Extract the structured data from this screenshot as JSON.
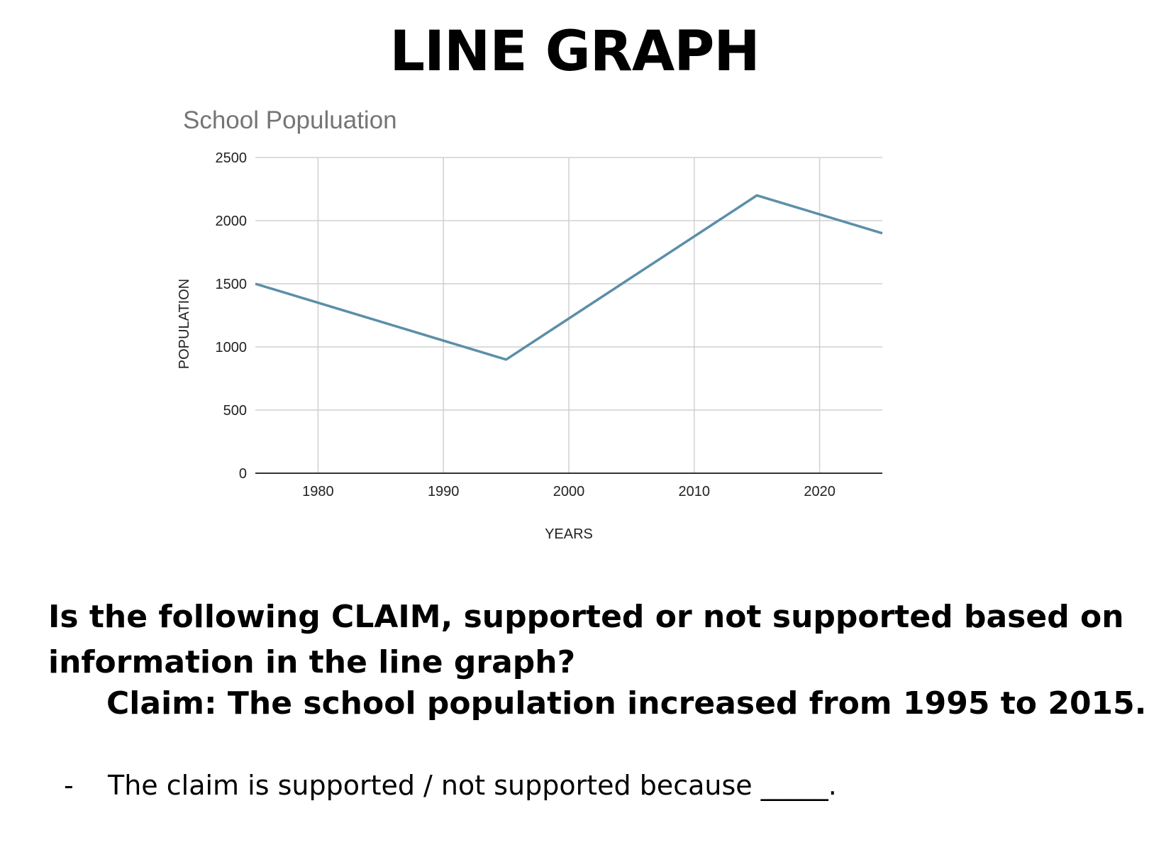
{
  "page": {
    "title": "LINE GRAPH",
    "question": "Is the following CLAIM, supported or not supported based on information in the line graph?",
    "claim": "Claim:  The school population increased from 1995 to 2015.",
    "bullet_marker": "-",
    "bullet_text": "The claim is supported / not supported because _____."
  },
  "chart_data": {
    "type": "line",
    "title": "School Populuation",
    "xlabel": "YEARS",
    "ylabel": "POPULATION",
    "xlim": [
      1975,
      2025
    ],
    "ylim": [
      0,
      2500
    ],
    "xticks": [
      1980,
      1990,
      2000,
      2010,
      2020
    ],
    "yticks": [
      0,
      500,
      1000,
      1500,
      2000,
      2500
    ],
    "grid": true,
    "series": [
      {
        "x": [
          1975,
          1995,
          2015,
          2025
        ],
        "values": [
          1500,
          900,
          2200,
          1900
        ],
        "color": "#5b8fa8"
      }
    ]
  }
}
